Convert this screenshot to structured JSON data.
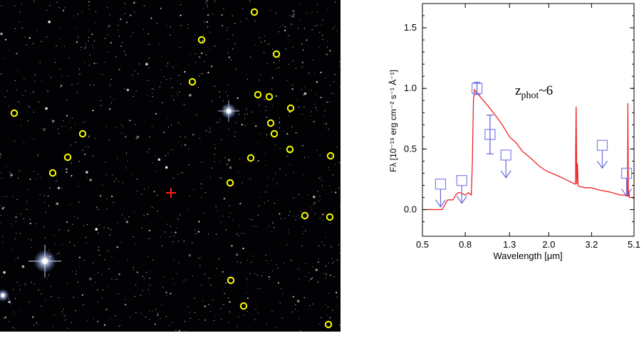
{
  "colors": {
    "sky_background": "#020204",
    "candidate_circle": "#ffff00",
    "target_cross": "#ff2020",
    "sed_model_line": "#ee1111",
    "photometry_markers": "#8888ee",
    "upper_limit_arrows": "#6a6ad8"
  },
  "sky_image": {
    "marker_names": [
      "yellow-circle-candidate",
      "red-cross-target"
    ]
  },
  "chart_data": {
    "type": "line",
    "title": "",
    "xlabel": "Wavelength [μm]",
    "ylabel": "Fλ [10⁻¹⁹ erg cm⁻² s⁻¹ Å⁻¹]",
    "x_scale": "log",
    "xlim": [
      0.5,
      5.1
    ],
    "ylim": [
      -0.22,
      1.7
    ],
    "x_ticks": [
      0.5,
      0.8,
      1.3,
      2.0,
      3.2,
      5.1
    ],
    "x_tick_labels": [
      "0.5",
      "0.8",
      "1.3",
      "2.0",
      "3.2",
      "5.1"
    ],
    "y_ticks": [
      0.0,
      0.5,
      1.0,
      1.5
    ],
    "y_tick_labels": [
      "0.0",
      "0.5",
      "1.0",
      "1.5"
    ],
    "grid": false,
    "annotation": "z_phot ~ 6",
    "annotation_parts": {
      "main": "z",
      "subscript": "phot",
      "suffix": "~6"
    },
    "series": [
      {
        "role": "model_sed",
        "color": "#ee1111",
        "x": [
          0.5,
          0.62,
          0.66,
          0.7,
          0.72,
          0.74,
          0.755,
          0.8,
          0.83,
          0.855,
          0.865,
          0.875,
          0.885,
          0.9,
          1.0,
          1.1,
          1.2,
          1.3,
          1.4,
          1.5,
          1.6,
          1.7,
          1.8,
          1.9,
          2.0,
          2.2,
          2.4,
          2.6,
          2.68,
          2.7,
          2.72,
          2.74,
          2.76,
          2.8,
          3.0,
          3.2,
          3.5,
          3.8,
          4.0,
          4.2,
          4.4,
          4.6,
          4.75,
          4.77,
          4.79,
          4.82,
          4.85,
          5.0,
          5.1
        ],
        "y": [
          0.0,
          0.0,
          0.08,
          0.08,
          0.12,
          0.14,
          0.14,
          0.12,
          0.14,
          0.12,
          0.4,
          0.9,
          0.99,
          0.97,
          0.88,
          0.79,
          0.7,
          0.6,
          0.55,
          0.48,
          0.44,
          0.4,
          0.36,
          0.33,
          0.31,
          0.28,
          0.25,
          0.22,
          0.21,
          0.85,
          0.21,
          0.38,
          0.2,
          0.19,
          0.18,
          0.18,
          0.16,
          0.15,
          0.14,
          0.13,
          0.12,
          0.12,
          0.11,
          0.88,
          0.11,
          0.15,
          0.1,
          0.1,
          0.09
        ]
      }
    ],
    "photometry": [
      {
        "x": 0.61,
        "y": 0.21,
        "upper_limit": true
      },
      {
        "x": 0.77,
        "y": 0.24,
        "upper_limit": true
      },
      {
        "x": 0.91,
        "y": 1.0,
        "yerr": 0.05,
        "upper_limit": false
      },
      {
        "x": 1.05,
        "y": 0.62,
        "yerr": 0.16,
        "upper_limit": false
      },
      {
        "x": 1.25,
        "y": 0.45,
        "upper_limit": true
      },
      {
        "x": 3.6,
        "y": 0.53,
        "upper_limit": true
      },
      {
        "x": 4.7,
        "y": 0.3,
        "upper_limit": true
      }
    ]
  }
}
